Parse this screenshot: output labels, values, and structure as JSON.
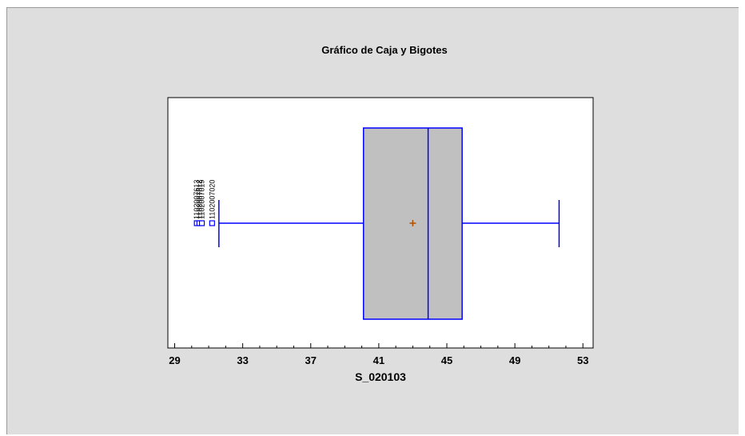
{
  "chart_data": {
    "type": "box",
    "title": "Gráfico de Caja y Bigotes",
    "xlabel": "S_020103",
    "ylabel": "",
    "xlim": [
      28.6,
      53.6
    ],
    "x_ticks": [
      29,
      33,
      37,
      41,
      45,
      49,
      53
    ],
    "grid": false,
    "series": [
      {
        "whisker_low": 31.6,
        "q1": 40.1,
        "median": 43.9,
        "mean": 43.0,
        "q3": 45.9,
        "whisker_high": 51.6,
        "outliers": [
          {
            "value": 30.3,
            "label": "1102007613"
          },
          {
            "value": 30.45,
            "label": "1102007012"
          },
          {
            "value": 30.6,
            "label": "1102007019"
          },
          {
            "value": 31.2,
            "label": "1102007020"
          }
        ]
      }
    ],
    "colors": {
      "box_fill": "#c0c0c0",
      "box_stroke": "#0000ff",
      "mean_marker": "#b05000",
      "outlier": "#0000ff",
      "panel": "#ffffff",
      "background": "#dedede"
    }
  }
}
